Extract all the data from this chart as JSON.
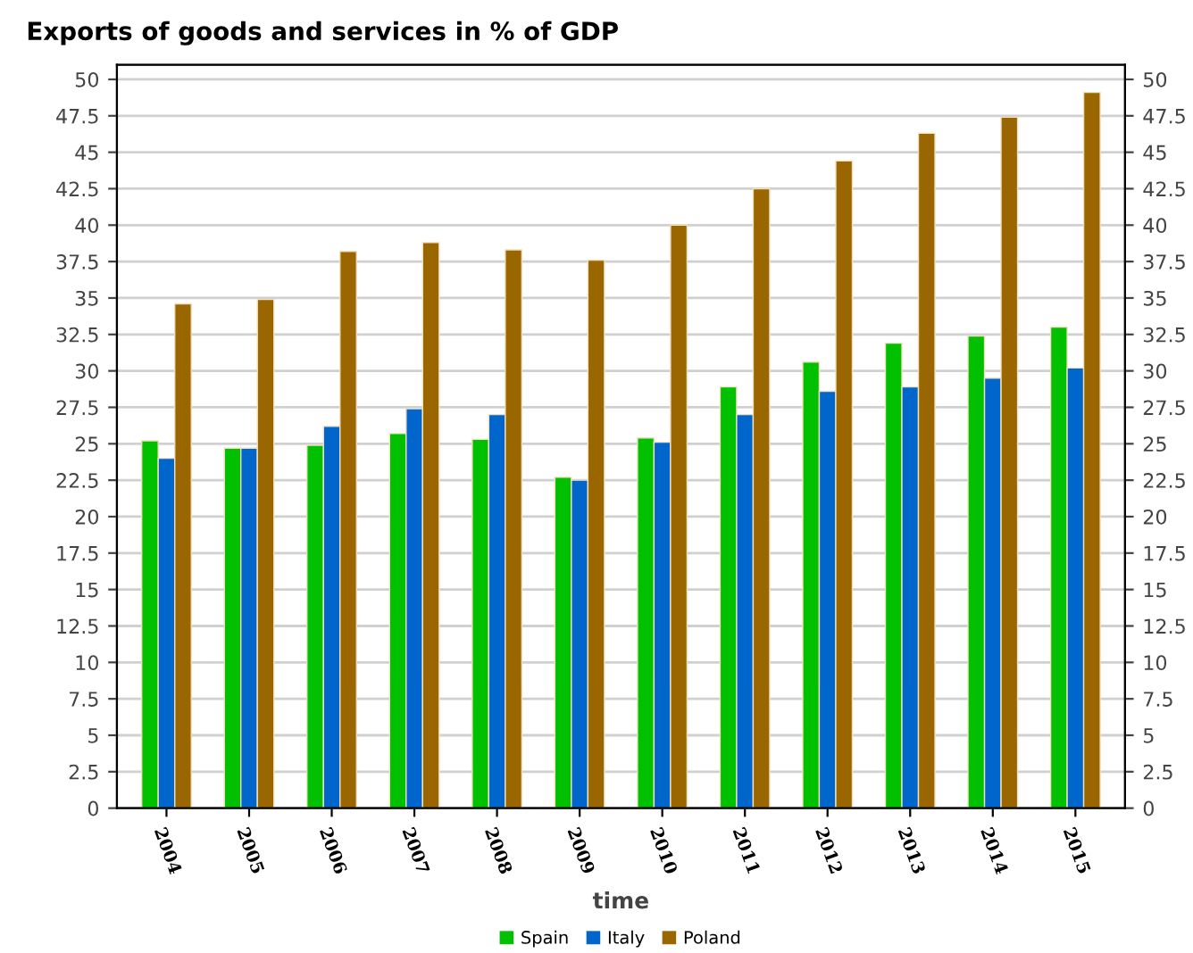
{
  "chart_data": {
    "type": "bar",
    "title": "Exports of goods and services in % of GDP",
    "xlabel": "time",
    "categories": [
      "2004",
      "2005",
      "2006",
      "2007",
      "2008",
      "2009",
      "2010",
      "2011",
      "2012",
      "2013",
      "2014",
      "2015"
    ],
    "series": [
      {
        "name": "Spain",
        "color": "#00c000",
        "values": [
          25.2,
          24.7,
          24.9,
          25.7,
          25.3,
          22.7,
          25.4,
          28.9,
          30.6,
          31.9,
          32.4,
          33.0
        ]
      },
      {
        "name": "Italy",
        "color": "#0066cc",
        "values": [
          24.0,
          24.7,
          26.2,
          27.4,
          27.0,
          22.5,
          25.1,
          27.0,
          28.6,
          28.9,
          29.5,
          30.2
        ]
      },
      {
        "name": "Poland",
        "color": "#996600",
        "values": [
          34.6,
          34.9,
          38.2,
          38.8,
          38.3,
          37.6,
          40.0,
          42.5,
          44.4,
          46.3,
          47.4,
          49.1
        ]
      }
    ],
    "ylim": [
      0,
      51
    ],
    "yticks": [
      0,
      2.5,
      5,
      7.5,
      10,
      12.5,
      15,
      17.5,
      20,
      22.5,
      25,
      27.5,
      30,
      32.5,
      35,
      37.5,
      40,
      42.5,
      45,
      47.5,
      50
    ],
    "y2lim": [
      0,
      51
    ],
    "y2ticks": [
      0,
      2.5,
      5,
      7.5,
      10,
      12.5,
      15,
      17.5,
      20,
      22.5,
      25,
      27.5,
      30,
      32.5,
      35,
      37.5,
      40,
      42.5,
      45,
      47.5,
      50
    ],
    "grid": "y",
    "legend": "bottom"
  }
}
